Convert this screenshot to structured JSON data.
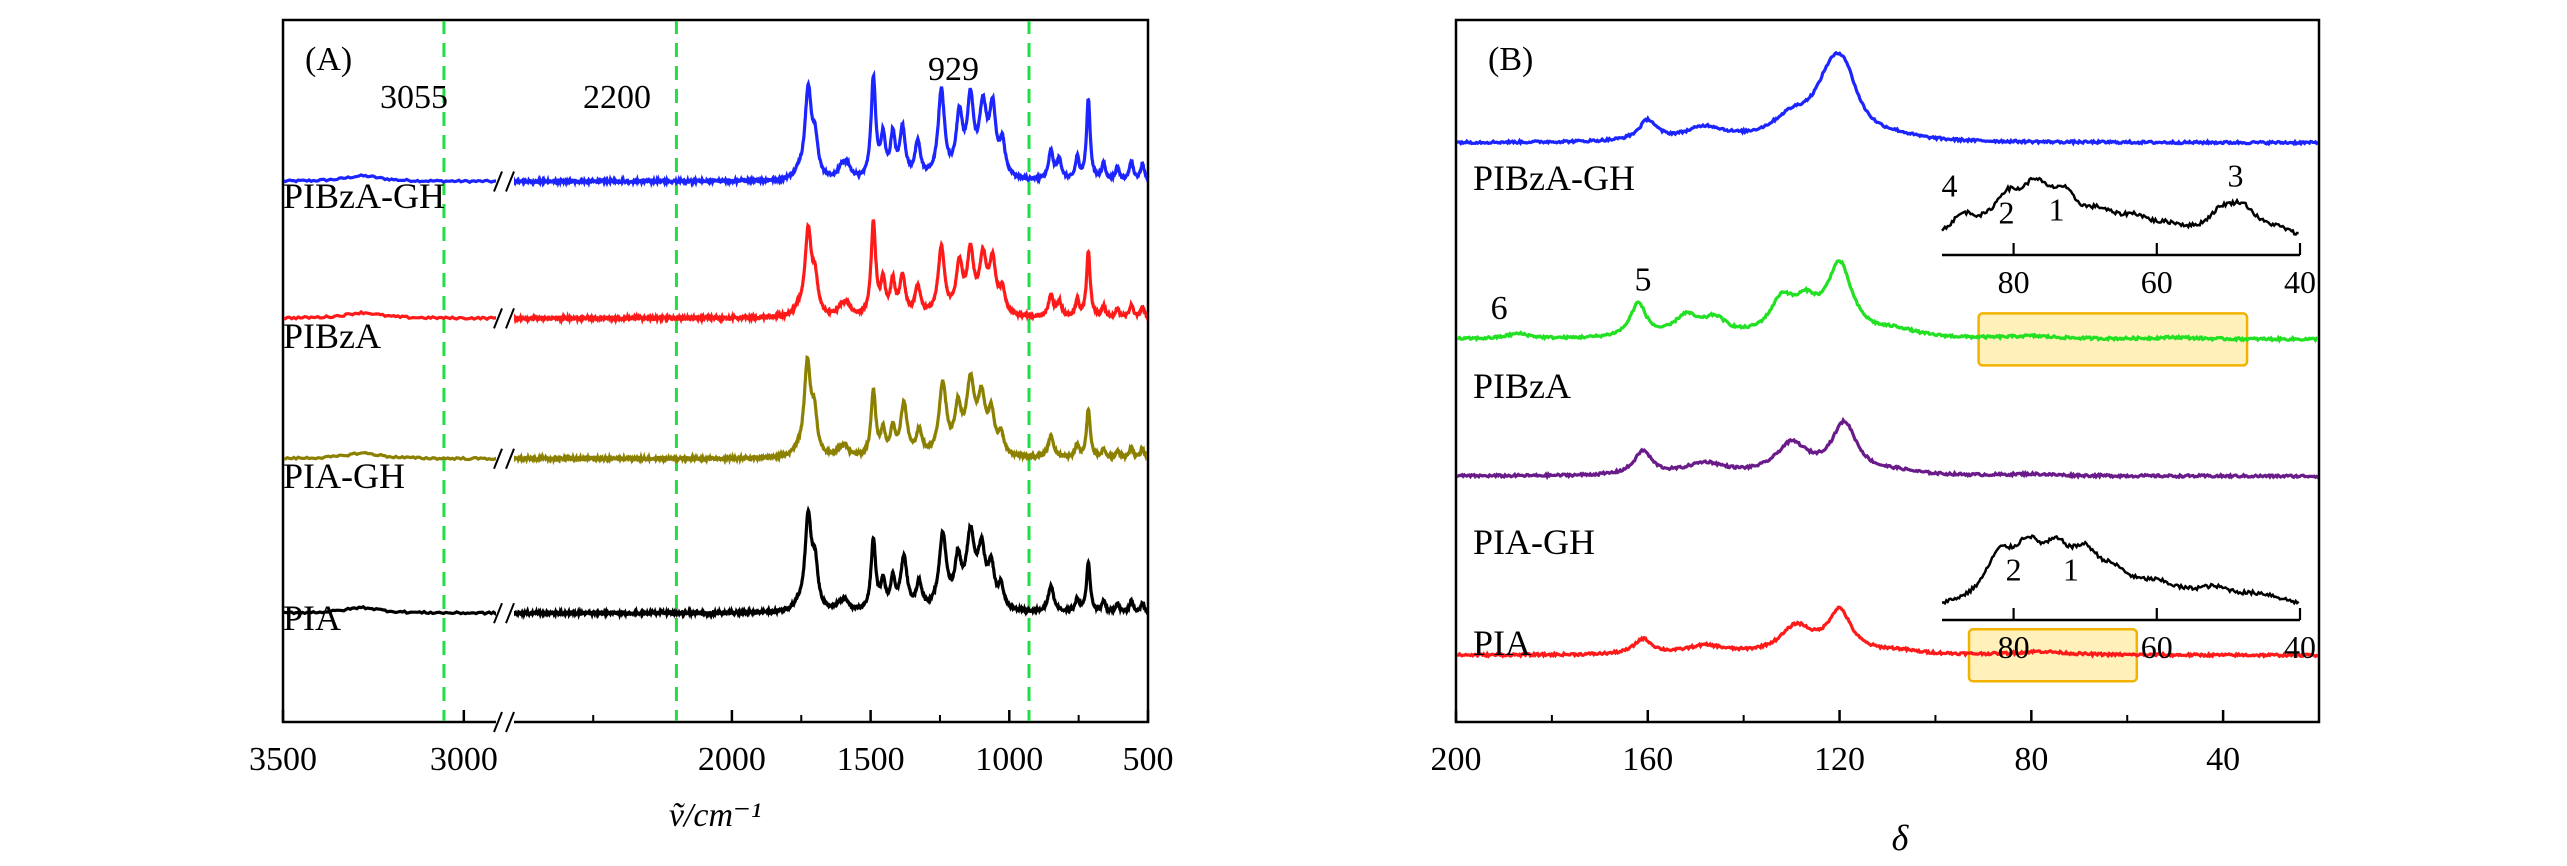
{
  "chart_data": [
    {
      "panel": "A",
      "type": "line",
      "panel_label": "(A)",
      "xlabel": "ṽ/cm⁻¹",
      "x_range": [
        3500,
        500
      ],
      "x_break": [
        2900,
        2800
      ],
      "xticks": [
        3500,
        3000,
        2000,
        1500,
        1000,
        500
      ],
      "y_axis": "offset intensity (no scale)",
      "reference_lines": [
        {
          "label": "3055",
          "x": 3055,
          "color": "#22dd44"
        },
        {
          "label": "2200",
          "x": 2200,
          "color": "#22dd44"
        },
        {
          "label": "929",
          "x": 929,
          "color": "#22dd44"
        }
      ],
      "series": [
        {
          "name": "PIBzA-GH",
          "color": "#1c24ff",
          "baseline": 0.77,
          "peaks": [
            [
              1760,
              0.05,
              15
            ],
            [
              1725,
              0.82,
              14
            ],
            [
              1700,
              0.32,
              12
            ],
            [
              1605,
              0.1,
              16
            ],
            [
              1585,
              0.12,
              14
            ],
            [
              1490,
              0.92,
              10
            ],
            [
              1455,
              0.36,
              10
            ],
            [
              1420,
              0.38,
              10
            ],
            [
              1385,
              0.45,
              12
            ],
            [
              1330,
              0.32,
              12
            ],
            [
              1245,
              0.8,
              14
            ],
            [
              1180,
              0.55,
              14
            ],
            [
              1140,
              0.68,
              14
            ],
            [
              1095,
              0.62,
              16
            ],
            [
              1060,
              0.6,
              14
            ],
            [
              1025,
              0.3,
              12
            ],
            [
              850,
              0.26,
              10
            ],
            [
              820,
              0.18,
              10
            ],
            [
              755,
              0.2,
              8
            ],
            [
              715,
              0.74,
              8
            ],
            [
              660,
              0.15,
              8
            ],
            [
              610,
              0.12,
              8
            ],
            [
              560,
              0.18,
              8
            ],
            [
              520,
              0.15,
              8
            ]
          ]
        },
        {
          "name": "PIBzA",
          "color": "#ff1a1a",
          "baseline": 0.575,
          "peaks": [
            [
              1760,
              0.05,
              15
            ],
            [
              1725,
              0.78,
              14
            ],
            [
              1700,
              0.3,
              12
            ],
            [
              1605,
              0.08,
              16
            ],
            [
              1585,
              0.1,
              14
            ],
            [
              1490,
              0.85,
              10
            ],
            [
              1455,
              0.3,
              10
            ],
            [
              1420,
              0.3,
              10
            ],
            [
              1385,
              0.36,
              12
            ],
            [
              1330,
              0.26,
              12
            ],
            [
              1245,
              0.62,
              14
            ],
            [
              1180,
              0.45,
              14
            ],
            [
              1140,
              0.55,
              14
            ],
            [
              1095,
              0.5,
              16
            ],
            [
              1060,
              0.46,
              14
            ],
            [
              1025,
              0.22,
              12
            ],
            [
              850,
              0.2,
              10
            ],
            [
              820,
              0.14,
              10
            ],
            [
              755,
              0.15,
              8
            ],
            [
              715,
              0.6,
              8
            ],
            [
              660,
              0.1,
              8
            ],
            [
              610,
              0.08,
              8
            ],
            [
              560,
              0.12,
              8
            ],
            [
              520,
              0.1,
              8
            ]
          ]
        },
        {
          "name": "PIA-GH",
          "color": "#8b8000",
          "baseline": 0.375,
          "peaks": [
            [
              1765,
              0.04,
              15
            ],
            [
              1728,
              0.85,
              14
            ],
            [
              1703,
              0.35,
              12
            ],
            [
              1610,
              0.06,
              16
            ],
            [
              1590,
              0.08,
              14
            ],
            [
              1490,
              0.6,
              10
            ],
            [
              1455,
              0.22,
              10
            ],
            [
              1420,
              0.24,
              10
            ],
            [
              1380,
              0.48,
              14
            ],
            [
              1325,
              0.22,
              12
            ],
            [
              1240,
              0.65,
              16
            ],
            [
              1185,
              0.4,
              14
            ],
            [
              1140,
              0.64,
              18
            ],
            [
              1100,
              0.48,
              16
            ],
            [
              1065,
              0.36,
              14
            ],
            [
              1030,
              0.18,
              12
            ],
            [
              850,
              0.2,
              12
            ],
            [
              755,
              0.12,
              8
            ],
            [
              715,
              0.45,
              8
            ],
            [
              660,
              0.08,
              8
            ],
            [
              610,
              0.06,
              8
            ],
            [
              560,
              0.1,
              8
            ],
            [
              520,
              0.08,
              8
            ]
          ]
        },
        {
          "name": "PIA",
          "color": "#000000",
          "baseline": 0.155,
          "peaks": [
            [
              1765,
              0.04,
              15
            ],
            [
              1725,
              0.86,
              14
            ],
            [
              1700,
              0.38,
              12
            ],
            [
              1610,
              0.06,
              16
            ],
            [
              1590,
              0.08,
              14
            ],
            [
              1490,
              0.65,
              10
            ],
            [
              1455,
              0.25,
              10
            ],
            [
              1420,
              0.27,
              10
            ],
            [
              1380,
              0.48,
              14
            ],
            [
              1325,
              0.24,
              12
            ],
            [
              1240,
              0.68,
              16
            ],
            [
              1185,
              0.42,
              14
            ],
            [
              1140,
              0.66,
              18
            ],
            [
              1100,
              0.5,
              16
            ],
            [
              1065,
              0.36,
              14
            ],
            [
              1030,
              0.2,
              12
            ],
            [
              850,
              0.24,
              12
            ],
            [
              755,
              0.12,
              8
            ],
            [
              715,
              0.46,
              8
            ],
            [
              660,
              0.1,
              8
            ],
            [
              610,
              0.08,
              8
            ],
            [
              560,
              0.11,
              8
            ],
            [
              520,
              0.08,
              8
            ]
          ]
        }
      ],
      "labels": [
        "PIBzA-GH",
        "PIBzA",
        "PIA-GH",
        "PIA"
      ]
    },
    {
      "panel": "B",
      "type": "line",
      "panel_label": "(B)",
      "xlabel": "δ",
      "x_range": [
        200,
        20
      ],
      "xticks": [
        200,
        160,
        120,
        80,
        40
      ],
      "y_axis": "offset intensity (no scale)",
      "series": [
        {
          "name": "PIBzA-GH",
          "color": "#1c24ff",
          "baseline": 0.825,
          "peaks": [
            [
              160,
              0.12,
              2.2
            ],
            [
              148,
              0.08,
              5
            ],
            [
              130,
              0.12,
              5
            ],
            [
              122,
              0.28,
              4
            ],
            [
              119,
              0.3,
              3.5
            ],
            [
              108,
              0.02,
              5
            ]
          ]
        },
        {
          "name": "PIBzA",
          "color": "#22e022",
          "baseline": 0.545,
          "peaks": [
            [
              187,
              0.03,
              3
            ],
            [
              162,
              0.2,
              2
            ],
            [
              152,
              0.12,
              3
            ],
            [
              146,
              0.1,
              3
            ],
            [
              132,
              0.2,
              3
            ],
            [
              127,
              0.16,
              3
            ],
            [
              120,
              0.42,
              3.2
            ],
            [
              108,
              0.04,
              5
            ],
            [
              80,
              0.015,
              6
            ],
            [
              50,
              0.01,
              5
            ]
          ]
        },
        {
          "name": "PIA-GH",
          "color": "#6a1b8a",
          "baseline": 0.35,
          "peaks": [
            [
              161,
              0.14,
              2.2
            ],
            [
              148,
              0.07,
              5
            ],
            [
              130,
              0.18,
              4
            ],
            [
              119,
              0.3,
              3.2
            ],
            [
              108,
              0.02,
              5
            ],
            [
              80,
              0.01,
              6
            ]
          ]
        },
        {
          "name": "PIA",
          "color": "#ff1a1a",
          "baseline": 0.095,
          "peaks": [
            [
              161,
              0.09,
              2.2
            ],
            [
              148,
              0.05,
              5
            ],
            [
              129,
              0.16,
              4
            ],
            [
              120,
              0.25,
              3
            ],
            [
              108,
              0.02,
              5
            ],
            [
              78,
              0.02,
              6
            ]
          ]
        }
      ],
      "labels": [
        "PIBzA-GH",
        "PIBzA",
        "PIA-GH",
        "PIA"
      ],
      "peak_labels": [
        {
          "text": "6",
          "x": 191
        },
        {
          "text": "5",
          "x": 161
        }
      ],
      "highlight_regions": [
        {
          "series": "PIBzA",
          "x_from": 91,
          "x_to": 35,
          "color": "#ffe680"
        },
        {
          "series": "PIA",
          "x_from": 93,
          "x_to": 58,
          "color": "#ffe680"
        }
      ],
      "insets": [
        {
          "attached_to": "PIBzA",
          "x_range": [
            90,
            40
          ],
          "xticks": [
            80,
            60,
            40
          ],
          "annotations": [
            {
              "text": "4",
              "x": 87
            },
            {
              "text": "2",
              "x": 81
            },
            {
              "text": "1",
              "x": 74
            },
            {
              "text": "3",
              "x": 49
            }
          ],
          "peaks": [
            [
              87,
              0.45,
              2.5
            ],
            [
              81,
              0.7,
              2.5
            ],
            [
              77,
              0.85,
              2.5
            ],
            [
              73,
              0.7,
              2.5
            ],
            [
              68,
              0.4,
              3
            ],
            [
              63,
              0.35,
              3
            ],
            [
              58,
              0.2,
              3
            ],
            [
              51,
              0.45,
              2.5
            ],
            [
              48,
              0.55,
              2.5
            ],
            [
              43,
              0.2,
              3
            ]
          ]
        },
        {
          "attached_to": "PIA",
          "x_range": [
            90,
            40
          ],
          "xticks": [
            80,
            60,
            40
          ],
          "annotations": [
            {
              "text": "2",
              "x": 80
            },
            {
              "text": "1",
              "x": 72
            }
          ],
          "peaks": [
            [
              82,
              0.85,
              2.5
            ],
            [
              78,
              0.9,
              2.5
            ],
            [
              74,
              0.8,
              2.5
            ],
            [
              70,
              0.75,
              2.5
            ],
            [
              66,
              0.45,
              3
            ],
            [
              60,
              0.35,
              4
            ],
            [
              52,
              0.3,
              4
            ],
            [
              45,
              0.2,
              4
            ]
          ]
        }
      ]
    }
  ]
}
